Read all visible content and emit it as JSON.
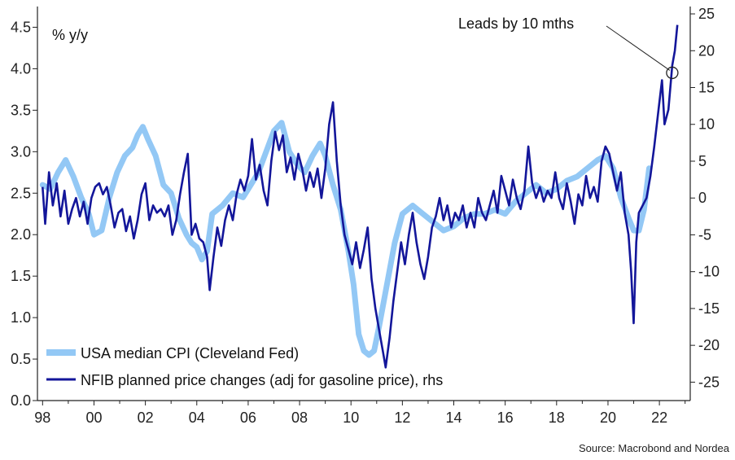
{
  "chart_data": {
    "type": "line",
    "unit_label": "% y/y",
    "source": "Source: Macrobond and Nordea",
    "annotation": "Leads by 10 mths",
    "legend_placement": "bottom-left",
    "grid": false,
    "colors": {
      "cpi": "#93c8f5",
      "nfib": "#13169a"
    },
    "x_range": [
      1997.8,
      2023.2
    ],
    "x_ticks": [
      {
        "value": 1998,
        "label": "98"
      },
      {
        "value": 2000,
        "label": "00"
      },
      {
        "value": 2002,
        "label": "02"
      },
      {
        "value": 2004,
        "label": "04"
      },
      {
        "value": 2006,
        "label": "06"
      },
      {
        "value": 2008,
        "label": "08"
      },
      {
        "value": 2010,
        "label": "10"
      },
      {
        "value": 2012,
        "label": "12"
      },
      {
        "value": 2014,
        "label": "14"
      },
      {
        "value": 2016,
        "label": "16"
      },
      {
        "value": 2018,
        "label": "18"
      },
      {
        "value": 2020,
        "label": "20"
      },
      {
        "value": 2022,
        "label": "22"
      }
    ],
    "y_left": {
      "range": [
        0.0,
        4.75
      ],
      "ticks": [
        "0.0",
        "0.5",
        "1.0",
        "1.5",
        "2.0",
        "2.5",
        "3.0",
        "3.5",
        "4.0",
        "4.5"
      ]
    },
    "y_right": {
      "range": [
        -27.5,
        26
      ],
      "ticks": [
        "-25",
        "-20",
        "-15",
        "-10",
        "-5",
        "0",
        "5",
        "10",
        "15",
        "20",
        "25"
      ]
    },
    "series": [
      {
        "name": "USA median CPI (Cleveland Fed)",
        "axis": "left",
        "points": [
          [
            1998.0,
            2.6
          ],
          [
            1998.3,
            2.55
          ],
          [
            1998.6,
            2.75
          ],
          [
            1998.9,
            2.9
          ],
          [
            1999.2,
            2.7
          ],
          [
            1999.5,
            2.45
          ],
          [
            1999.8,
            2.25
          ],
          [
            2000.0,
            2.0
          ],
          [
            2000.3,
            2.05
          ],
          [
            2000.6,
            2.45
          ],
          [
            2000.9,
            2.75
          ],
          [
            2001.2,
            2.95
          ],
          [
            2001.5,
            3.05
          ],
          [
            2001.7,
            3.2
          ],
          [
            2001.9,
            3.3
          ],
          [
            2002.1,
            3.15
          ],
          [
            2002.4,
            2.95
          ],
          [
            2002.7,
            2.6
          ],
          [
            2003.0,
            2.5
          ],
          [
            2003.3,
            2.2
          ],
          [
            2003.6,
            2.0
          ],
          [
            2003.8,
            1.9
          ],
          [
            2004.0,
            1.85
          ],
          [
            2004.2,
            1.7
          ],
          [
            2004.4,
            1.8
          ],
          [
            2004.6,
            2.25
          ],
          [
            2005.0,
            2.35
          ],
          [
            2005.4,
            2.5
          ],
          [
            2005.8,
            2.45
          ],
          [
            2006.1,
            2.6
          ],
          [
            2006.4,
            2.75
          ],
          [
            2006.7,
            3.0
          ],
          [
            2007.0,
            3.25
          ],
          [
            2007.3,
            3.35
          ],
          [
            2007.6,
            3.0
          ],
          [
            2007.9,
            2.85
          ],
          [
            2008.2,
            2.75
          ],
          [
            2008.5,
            2.95
          ],
          [
            2008.8,
            3.1
          ],
          [
            2009.0,
            2.95
          ],
          [
            2009.3,
            2.6
          ],
          [
            2009.6,
            2.3
          ],
          [
            2009.9,
            1.8
          ],
          [
            2010.1,
            1.4
          ],
          [
            2010.3,
            0.8
          ],
          [
            2010.5,
            0.6
          ],
          [
            2010.7,
            0.55
          ],
          [
            2010.9,
            0.6
          ],
          [
            2011.1,
            0.9
          ],
          [
            2011.4,
            1.4
          ],
          [
            2011.7,
            1.9
          ],
          [
            2012.0,
            2.25
          ],
          [
            2012.4,
            2.35
          ],
          [
            2012.8,
            2.25
          ],
          [
            2013.2,
            2.15
          ],
          [
            2013.6,
            2.05
          ],
          [
            2014.0,
            2.1
          ],
          [
            2014.4,
            2.2
          ],
          [
            2014.8,
            2.25
          ],
          [
            2015.2,
            2.25
          ],
          [
            2015.6,
            2.3
          ],
          [
            2016.0,
            2.25
          ],
          [
            2016.4,
            2.4
          ],
          [
            2016.8,
            2.5
          ],
          [
            2017.2,
            2.6
          ],
          [
            2017.6,
            2.5
          ],
          [
            2018.0,
            2.55
          ],
          [
            2018.4,
            2.65
          ],
          [
            2018.8,
            2.7
          ],
          [
            2019.2,
            2.8
          ],
          [
            2019.6,
            2.9
          ],
          [
            2019.9,
            2.95
          ],
          [
            2020.2,
            2.8
          ],
          [
            2020.5,
            2.45
          ],
          [
            2020.8,
            2.2
          ],
          [
            2021.0,
            2.05
          ],
          [
            2021.2,
            2.05
          ],
          [
            2021.4,
            2.3
          ],
          [
            2021.6,
            2.8
          ]
        ]
      },
      {
        "name": "NFIB planned price changes (adj for gasoline price), rhs",
        "axis": "right",
        "points": [
          [
            1998.0,
            1.5
          ],
          [
            1998.1,
            -3.5
          ],
          [
            1998.25,
            3.5
          ],
          [
            1998.4,
            -1
          ],
          [
            1998.55,
            2
          ],
          [
            1998.7,
            -2.5
          ],
          [
            1998.85,
            1
          ],
          [
            1999.0,
            -3.5
          ],
          [
            1999.15,
            -1.5
          ],
          [
            1999.3,
            0
          ],
          [
            1999.45,
            -2.5
          ],
          [
            1999.6,
            -0.5
          ],
          [
            1999.75,
            -3.5
          ],
          [
            1999.9,
            0
          ],
          [
            2000.05,
            1.5
          ],
          [
            2000.2,
            2
          ],
          [
            2000.35,
            0.5
          ],
          [
            2000.5,
            1.5
          ],
          [
            2000.65,
            -1
          ],
          [
            2000.8,
            -4
          ],
          [
            2000.95,
            -2
          ],
          [
            2001.1,
            -1.5
          ],
          [
            2001.25,
            -4.5
          ],
          [
            2001.4,
            -2.5
          ],
          [
            2001.55,
            -5.5
          ],
          [
            2001.7,
            -3
          ],
          [
            2001.85,
            0.5
          ],
          [
            2002.0,
            2
          ],
          [
            2002.15,
            -3
          ],
          [
            2002.3,
            -1
          ],
          [
            2002.45,
            -2
          ],
          [
            2002.6,
            -1.5
          ],
          [
            2002.75,
            -2.5
          ],
          [
            2002.9,
            -1
          ],
          [
            2003.05,
            -5
          ],
          [
            2003.2,
            -3
          ],
          [
            2003.35,
            0.5
          ],
          [
            2003.5,
            3.5
          ],
          [
            2003.65,
            6
          ],
          [
            2003.8,
            -5
          ],
          [
            2003.95,
            -3.5
          ],
          [
            2004.1,
            -5.5
          ],
          [
            2004.25,
            -6
          ],
          [
            2004.4,
            -8
          ],
          [
            2004.5,
            -12.5
          ],
          [
            2004.65,
            -8
          ],
          [
            2004.8,
            -4
          ],
          [
            2004.95,
            -6.5
          ],
          [
            2005.1,
            -3
          ],
          [
            2005.25,
            -1
          ],
          [
            2005.4,
            -3
          ],
          [
            2005.55,
            0.5
          ],
          [
            2005.7,
            2.5
          ],
          [
            2005.85,
            1
          ],
          [
            2006.0,
            3
          ],
          [
            2006.15,
            8
          ],
          [
            2006.3,
            2.5
          ],
          [
            2006.45,
            4.5
          ],
          [
            2006.6,
            1
          ],
          [
            2006.75,
            -1
          ],
          [
            2006.9,
            5
          ],
          [
            2007.05,
            9
          ],
          [
            2007.2,
            6.5
          ],
          [
            2007.35,
            8.5
          ],
          [
            2007.5,
            3.5
          ],
          [
            2007.65,
            5.5
          ],
          [
            2007.8,
            2.5
          ],
          [
            2007.95,
            6
          ],
          [
            2008.1,
            4
          ],
          [
            2008.25,
            1
          ],
          [
            2008.4,
            3.5
          ],
          [
            2008.55,
            1.5
          ],
          [
            2008.7,
            4
          ],
          [
            2008.85,
            0
          ],
          [
            2009.0,
            4
          ],
          [
            2009.15,
            10
          ],
          [
            2009.3,
            13
          ],
          [
            2009.45,
            5
          ],
          [
            2009.6,
            -1
          ],
          [
            2009.75,
            -5
          ],
          [
            2009.9,
            -7
          ],
          [
            2010.05,
            -9
          ],
          [
            2010.2,
            -6
          ],
          [
            2010.35,
            -9.5
          ],
          [
            2010.5,
            -7
          ],
          [
            2010.65,
            -4
          ],
          [
            2010.8,
            -11
          ],
          [
            2010.95,
            -15
          ],
          [
            2011.1,
            -18
          ],
          [
            2011.25,
            -21
          ],
          [
            2011.35,
            -23
          ],
          [
            2011.5,
            -19
          ],
          [
            2011.65,
            -14
          ],
          [
            2011.8,
            -10
          ],
          [
            2011.95,
            -6
          ],
          [
            2012.1,
            -9
          ],
          [
            2012.25,
            -5
          ],
          [
            2012.4,
            -2
          ],
          [
            2012.55,
            -6
          ],
          [
            2012.7,
            -9
          ],
          [
            2012.85,
            -11
          ],
          [
            2013.0,
            -8
          ],
          [
            2013.15,
            -4
          ],
          [
            2013.3,
            -2.5
          ],
          [
            2013.45,
            0
          ],
          [
            2013.6,
            -3
          ],
          [
            2013.75,
            -1
          ],
          [
            2013.9,
            -4
          ],
          [
            2014.05,
            -2
          ],
          [
            2014.2,
            -3
          ],
          [
            2014.35,
            -1
          ],
          [
            2014.5,
            -4
          ],
          [
            2014.65,
            -2
          ],
          [
            2014.8,
            -4
          ],
          [
            2014.95,
            0
          ],
          [
            2015.1,
            -2
          ],
          [
            2015.25,
            -3
          ],
          [
            2015.4,
            -1
          ],
          [
            2015.55,
            1
          ],
          [
            2015.7,
            -2
          ],
          [
            2015.85,
            3
          ],
          [
            2016.0,
            1
          ],
          [
            2016.15,
            -1
          ],
          [
            2016.3,
            2.5
          ],
          [
            2016.45,
            0
          ],
          [
            2016.6,
            -1.5
          ],
          [
            2016.75,
            1
          ],
          [
            2016.9,
            7
          ],
          [
            2017.05,
            2
          ],
          [
            2017.2,
            0
          ],
          [
            2017.35,
            1.5
          ],
          [
            2017.5,
            -0.5
          ],
          [
            2017.65,
            1
          ],
          [
            2017.8,
            0
          ],
          [
            2017.95,
            3.5
          ],
          [
            2018.1,
            0
          ],
          [
            2018.25,
            -1.5
          ],
          [
            2018.4,
            2
          ],
          [
            2018.55,
            -0.5
          ],
          [
            2018.7,
            -3.5
          ],
          [
            2018.85,
            0.5
          ],
          [
            2019.0,
            -1
          ],
          [
            2019.15,
            3
          ],
          [
            2019.3,
            0
          ],
          [
            2019.45,
            1.5
          ],
          [
            2019.6,
            -0.5
          ],
          [
            2019.75,
            5
          ],
          [
            2019.9,
            7
          ],
          [
            2020.05,
            6
          ],
          [
            2020.2,
            3.5
          ],
          [
            2020.35,
            1
          ],
          [
            2020.5,
            3.5
          ],
          [
            2020.65,
            -2
          ],
          [
            2020.8,
            -5
          ],
          [
            2020.9,
            -10
          ],
          [
            2021.0,
            -17
          ],
          [
            2021.1,
            -6
          ],
          [
            2021.2,
            -2
          ],
          [
            2021.35,
            -1
          ],
          [
            2021.5,
            0
          ],
          [
            2021.65,
            3
          ],
          [
            2021.8,
            7
          ],
          [
            2022.0,
            13
          ],
          [
            2022.1,
            16
          ],
          [
            2022.2,
            10
          ],
          [
            2022.35,
            12
          ],
          [
            2022.5,
            18
          ],
          [
            2022.6,
            20
          ],
          [
            2022.7,
            23.5
          ]
        ]
      }
    ],
    "annotation_point": [
      2022.5,
      17.0
    ]
  }
}
